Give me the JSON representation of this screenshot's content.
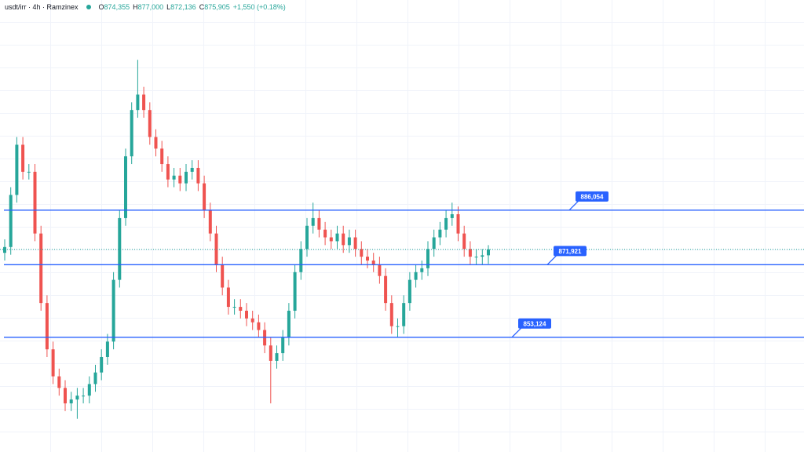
{
  "header": {
    "title": "usdt/irr · 4h · Ramzinex",
    "items": [
      {
        "key": "O",
        "value": "874,355"
      },
      {
        "key": "H",
        "value": "877,000"
      },
      {
        "key": "L",
        "value": "872,136"
      },
      {
        "key": "C",
        "value": "875,905"
      }
    ],
    "change": "+1,550 (+0.18%)"
  },
  "chart_data": {
    "type": "candlestick",
    "up_color": "#26a69a",
    "down_color": "#ef5350",
    "ylim": [
      823400,
      940500
    ],
    "open": [
      875000,
      876500,
      890000,
      903000,
      896000,
      896000,
      880000,
      862000,
      850000,
      843000,
      840000,
      836000,
      837000,
      838000,
      838000,
      841000,
      844000,
      848000,
      852000,
      868000,
      884000,
      900000,
      912000,
      916000,
      912000,
      905000,
      902000,
      898000,
      894000,
      895000,
      893000,
      896000,
      897000,
      893000,
      886000,
      880000,
      872000,
      866000,
      861000,
      861000,
      860000,
      858000,
      857000,
      855000,
      851000,
      847000,
      849000,
      853000,
      860000,
      870000,
      876000,
      882000,
      884000,
      881000,
      879000,
      878000,
      880000,
      877000,
      879000,
      876000,
      874000,
      873000,
      872000,
      869000,
      862000,
      856000,
      856000,
      862000,
      868000,
      870000,
      871000,
      876000,
      879000,
      881000,
      884000,
      885000,
      880000,
      876000,
      874000,
      874000,
      874355
    ],
    "high": [
      878500,
      892000,
      905000,
      905000,
      898000,
      898000,
      882000,
      864000,
      852000,
      845000,
      842000,
      839000,
      840000,
      840000,
      843000,
      846000,
      850000,
      854000,
      870000,
      886000,
      902000,
      914000,
      925000,
      918000,
      914000,
      907000,
      904000,
      900000,
      897000,
      897000,
      898000,
      899000,
      899000,
      895000,
      888000,
      882000,
      874000,
      868000,
      863000,
      863000,
      862000,
      860000,
      859000,
      857000,
      853000,
      851000,
      855000,
      862000,
      872000,
      878000,
      884000,
      888000,
      886000,
      883000,
      881000,
      882000,
      882000,
      881000,
      881000,
      878000,
      876000,
      875000,
      874000,
      871000,
      864000,
      858000,
      864000,
      870000,
      872000,
      873000,
      878000,
      881000,
      883000,
      886000,
      888000,
      887000,
      882000,
      878000,
      876000,
      876000,
      877000
    ],
    "low": [
      873000,
      874500,
      888000,
      894000,
      894000,
      878000,
      860000,
      848000,
      841000,
      838000,
      834000,
      834000,
      832000,
      836000,
      836000,
      839000,
      842000,
      846000,
      850000,
      866000,
      882000,
      898000,
      910000,
      910000,
      903000,
      900000,
      896000,
      892000,
      892000,
      891000,
      891000,
      894000,
      891000,
      884000,
      878000,
      870000,
      864000,
      859000,
      859000,
      858000,
      856000,
      855000,
      853000,
      849000,
      836000,
      845000,
      847000,
      851000,
      858000,
      868000,
      874000,
      880000,
      879000,
      877000,
      876000,
      876000,
      875000,
      875000,
      874000,
      872000,
      871000,
      870000,
      867000,
      860000,
      854000,
      853000,
      854000,
      860000,
      866000,
      868000,
      869000,
      874000,
      877000,
      879000,
      882000,
      878000,
      874000,
      872000,
      872000,
      872000,
      872136
    ],
    "close": [
      876500,
      890000,
      903000,
      896000,
      896000,
      880000,
      862000,
      850000,
      843000,
      840000,
      836000,
      837000,
      838000,
      838000,
      841000,
      844000,
      848000,
      852000,
      868000,
      884000,
      900000,
      912000,
      916000,
      912000,
      905000,
      902000,
      898000,
      894000,
      895000,
      893000,
      896000,
      897000,
      893000,
      886000,
      880000,
      872000,
      866000,
      861000,
      861000,
      860000,
      858000,
      857000,
      855000,
      851000,
      847000,
      849000,
      853000,
      860000,
      870000,
      876000,
      882000,
      884000,
      881000,
      879000,
      878000,
      880000,
      877000,
      879000,
      876000,
      874000,
      873000,
      872000,
      869000,
      862000,
      856000,
      856000,
      862000,
      868000,
      870000,
      871000,
      876000,
      879000,
      881000,
      884000,
      885000,
      880000,
      876000,
      874000,
      874000,
      874355,
      875905
    ],
    "level_color": "#2962ff",
    "levels": [
      {
        "value": 886054,
        "label": "886,054"
      },
      {
        "value": 871921,
        "label": "871,921"
      },
      {
        "value": 853124,
        "label": "853,124"
      }
    ]
  }
}
